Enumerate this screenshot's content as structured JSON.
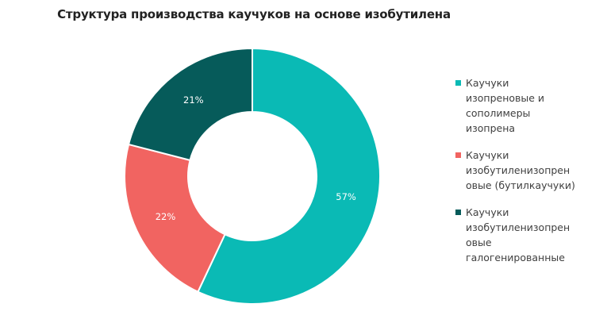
{
  "chart_data": {
    "type": "pie",
    "title": "Структура производства каучуков  на основе изобутилена",
    "categories": [
      "Каучуки изопреновые и сополимеры изопрена",
      "Каучуки изобутиленизопреновые (бутилкаучуки)",
      "Каучуки изобутиленизопреновые галогенированные"
    ],
    "legend_lines": [
      [
        "Каучуки",
        "изопреновые и",
        "сополимеры",
        "изопрена"
      ],
      [
        "Каучуки",
        "изобутиленизопрен",
        "овые (бутилкаучуки)"
      ],
      [
        "Каучуки",
        "изобутиленизопрен",
        "овые",
        "галогенированные"
      ]
    ],
    "values": [
      57,
      22,
      21
    ],
    "data_labels": [
      "57%",
      "22%",
      "21%"
    ],
    "colors": [
      "#0abab5",
      "#f16461",
      "#065b5a"
    ],
    "donut": true,
    "legend_position": "right"
  }
}
